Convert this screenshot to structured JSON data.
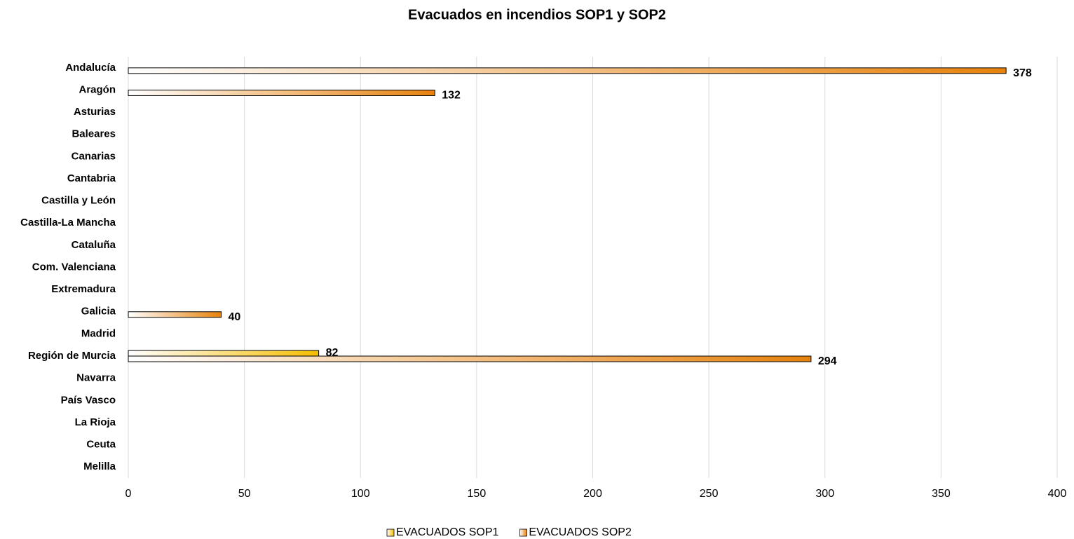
{
  "chart_data": {
    "type": "bar",
    "orientation": "horizontal",
    "title": "Evacuados en incendios SOP1 y SOP2",
    "categories": [
      "Andalucía",
      "Aragón",
      "Asturias",
      "Baleares",
      "Canarias",
      "Cantabria",
      "Castilla y León",
      "Castilla-La Mancha",
      "Cataluña",
      "Com. Valenciana",
      "Extremadura",
      "Galicia",
      "Madrid",
      "Región de Murcia",
      "Navarra",
      "País Vasco",
      "La Rioja",
      "Ceuta",
      "Melilla"
    ],
    "series": [
      {
        "name": "EVACUADOS SOP1",
        "color": "#f5bd00",
        "values": [
          null,
          null,
          null,
          null,
          null,
          null,
          null,
          null,
          null,
          null,
          null,
          null,
          null,
          82,
          null,
          null,
          null,
          null,
          null
        ]
      },
      {
        "name": "EVACUADOS SOP2",
        "color": "#e8820c",
        "values": [
          378,
          132,
          null,
          null,
          null,
          null,
          null,
          null,
          null,
          null,
          null,
          40,
          null,
          294,
          null,
          null,
          null,
          null,
          null
        ]
      }
    ],
    "xlim": [
      0,
      400
    ],
    "xticks": [
      0,
      50,
      100,
      150,
      200,
      250,
      300,
      350,
      400
    ],
    "grid": true,
    "legend": "bottom"
  }
}
